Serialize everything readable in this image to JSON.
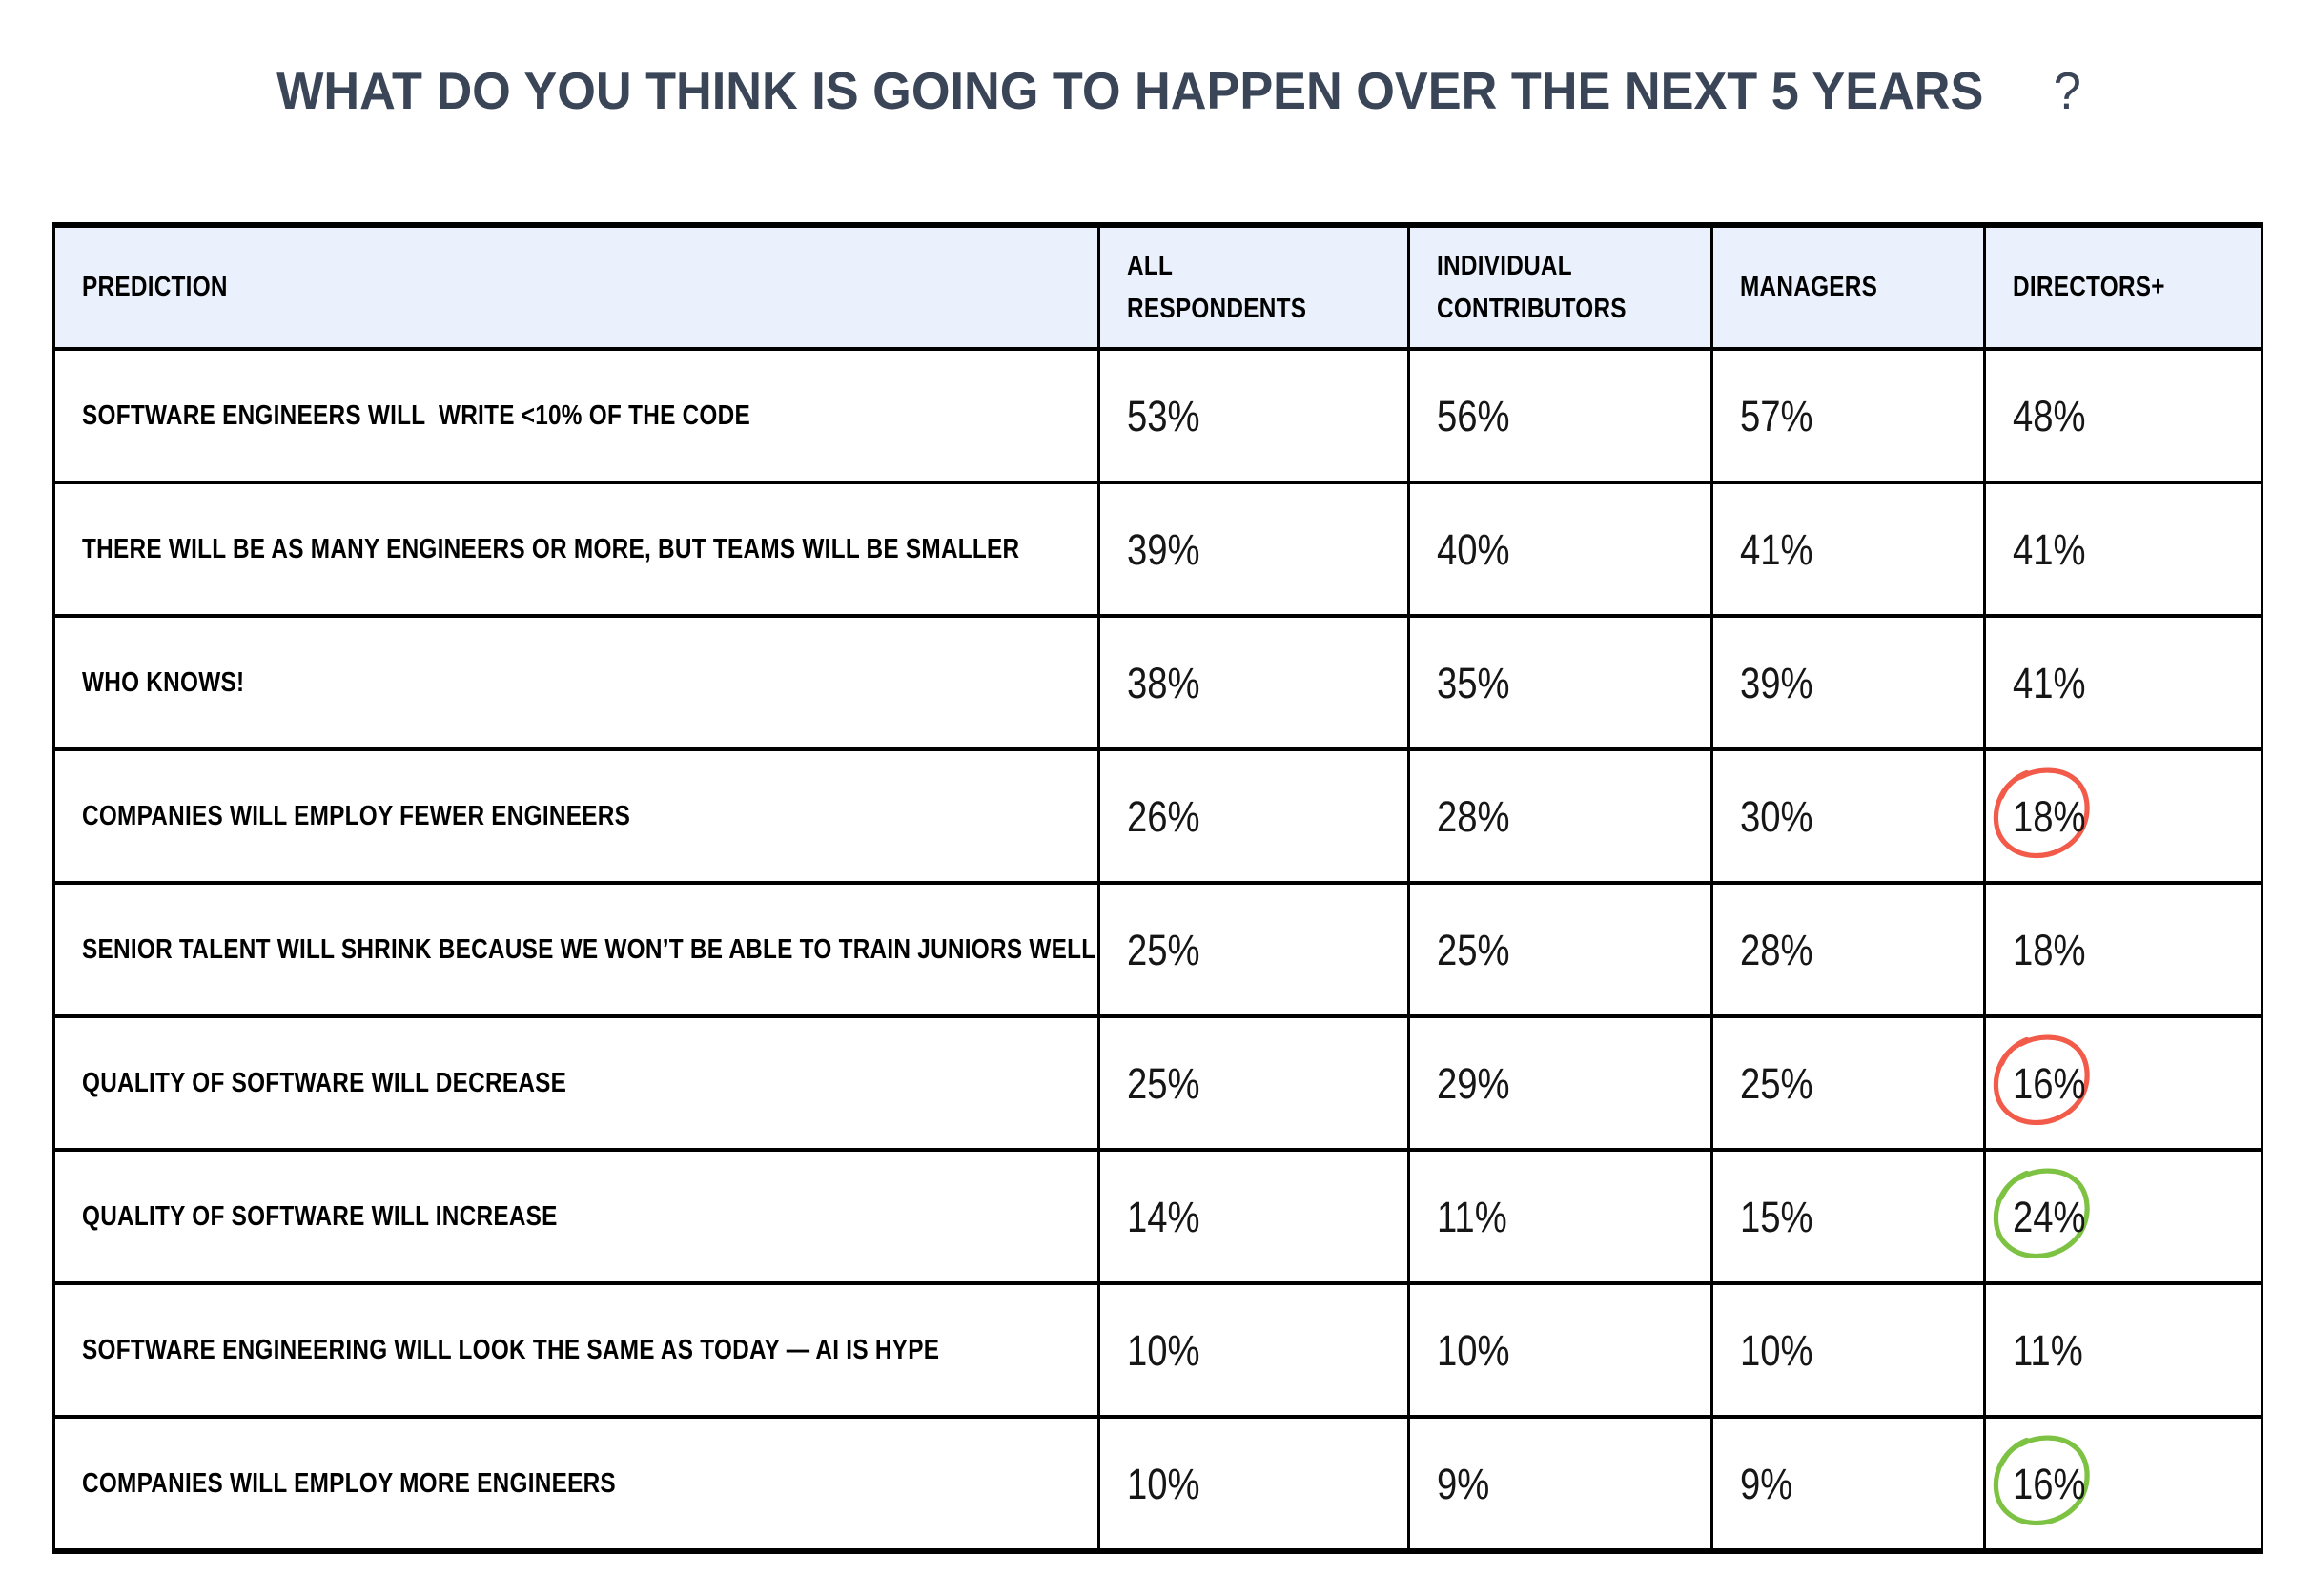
{
  "title": {
    "text": "WHAT DO YOU THINK IS GOING TO HAPPEN OVER THE NEXT 5 YEARS",
    "question_mark": "?"
  },
  "colors": {
    "title": "#3A4557",
    "border": "#000000",
    "header_bg": "#EAF1FC",
    "annotation_red": "#F25B4A",
    "annotation_green": "#7DC243"
  },
  "table": {
    "columns": [
      "PREDICTION",
      "ALL RESPONDENTS",
      "INDIVIDUAL CONTRIBUTORS",
      "MANAGERS",
      "DIRECTORS+"
    ],
    "rows": [
      {
        "prediction": "SOFTWARE ENGINEERS WILL  WRITE <10% OF THE CODE",
        "values": [
          "53%",
          "56%",
          "57%",
          "48%"
        ],
        "circle": ""
      },
      {
        "prediction": "THERE WILL BE AS MANY ENGINEERS OR MORE, BUT TEAMS WILL BE SMALLER",
        "values": [
          "39%",
          "40%",
          "41%",
          "41%"
        ],
        "circle": ""
      },
      {
        "prediction": "WHO KNOWS!",
        "values": [
          "38%",
          "35%",
          "39%",
          "41%"
        ],
        "circle": ""
      },
      {
        "prediction": "COMPANIES WILL EMPLOY FEWER ENGINEERS",
        "values": [
          "26%",
          "28%",
          "30%",
          "18%"
        ],
        "circle": "red"
      },
      {
        "prediction": "SENIOR TALENT WILL SHRINK BECAUSE WE WON’T BE ABLE TO TRAIN JUNIORS WELL",
        "values": [
          "25%",
          "25%",
          "28%",
          "18%"
        ],
        "circle": ""
      },
      {
        "prediction": "QUALITY OF SOFTWARE WILL DECREASE",
        "values": [
          "25%",
          "29%",
          "25%",
          "16%"
        ],
        "circle": "red"
      },
      {
        "prediction": "QUALITY OF SOFTWARE WILL INCREASE",
        "values": [
          "14%",
          "11%",
          "15%",
          "24%"
        ],
        "circle": "green"
      },
      {
        "prediction": "SOFTWARE ENGINEERING WILL LOOK THE SAME AS TODAY — AI IS HYPE",
        "values": [
          "10%",
          "10%",
          "10%",
          "11%"
        ],
        "circle": ""
      },
      {
        "prediction": "COMPANIES WILL EMPLOY MORE ENGINEERS",
        "values": [
          "10%",
          "9%",
          "9%",
          "16%"
        ],
        "circle": "green"
      }
    ]
  },
  "chart_data": {
    "type": "table",
    "title": "WHAT DO YOU THINK IS GOING TO HAPPEN OVER THE NEXT 5 YEARS ?",
    "columns": [
      "PREDICTION",
      "ALL RESPONDENTS",
      "INDIVIDUAL CONTRIBUTORS",
      "MANAGERS",
      "DIRECTORS+"
    ],
    "rows": [
      [
        "SOFTWARE ENGINEERS WILL WRITE <10% OF THE CODE",
        53,
        56,
        57,
        48
      ],
      [
        "THERE WILL BE AS MANY ENGINEERS OR MORE, BUT TEAMS WILL BE SMALLER",
        39,
        40,
        41,
        41
      ],
      [
        "WHO KNOWS!",
        38,
        35,
        39,
        41
      ],
      [
        "COMPANIES WILL EMPLOY FEWER ENGINEERS",
        26,
        28,
        30,
        18
      ],
      [
        "SENIOR TALENT WILL SHRINK BECAUSE WE WON’T BE ABLE TO TRAIN JUNIORS WELL",
        25,
        25,
        28,
        18
      ],
      [
        "QUALITY OF SOFTWARE WILL DECREASE",
        25,
        29,
        25,
        16
      ],
      [
        "QUALITY OF SOFTWARE WILL INCREASE",
        14,
        11,
        15,
        24
      ],
      [
        "SOFTWARE ENGINEERING WILL LOOK THE SAME AS TODAY — AI IS HYPE",
        10,
        10,
        10,
        11
      ],
      [
        "COMPANIES WILL EMPLOY MORE ENGINEERS",
        10,
        9,
        9,
        16
      ]
    ],
    "annotations": [
      {
        "row": "COMPANIES WILL EMPLOY FEWER ENGINEERS",
        "column": "DIRECTORS+",
        "value": 18,
        "style": "hand-drawn-red-circle"
      },
      {
        "row": "QUALITY OF SOFTWARE WILL DECREASE",
        "column": "DIRECTORS+",
        "value": 16,
        "style": "hand-drawn-red-circle"
      },
      {
        "row": "QUALITY OF SOFTWARE WILL INCREASE",
        "column": "DIRECTORS+",
        "value": 24,
        "style": "hand-drawn-green-circle"
      },
      {
        "row": "COMPANIES WILL EMPLOY MORE ENGINEERS",
        "column": "DIRECTORS+",
        "value": 16,
        "style": "hand-drawn-green-circle"
      }
    ],
    "units": "percent",
    "grid": true,
    "legend": false
  }
}
